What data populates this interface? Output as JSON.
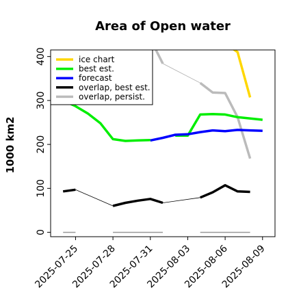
{
  "chart_data": {
    "type": "line",
    "title": "Area of Open water",
    "xlabel": "",
    "ylabel": "1000 km2",
    "xlim": [
      "2025-07-23",
      "2025-08-10"
    ],
    "ylim": [
      -10,
      415
    ],
    "yticks": [
      0,
      100,
      200,
      300,
      400
    ],
    "xticks": [
      {
        "date": "2025-07-25",
        "label": "2025-07-25",
        "color": "#000000"
      },
      {
        "date": "2025-07-28",
        "label": "2025-07-28",
        "color": "#000000"
      },
      {
        "date": "2025-07-31",
        "label": "2025-07-31",
        "color": "#228B22"
      },
      {
        "date": "2025-08-03",
        "label": "2025-08-03",
        "color": "#000000"
      },
      {
        "date": "2025-08-06",
        "label": "2025-08-06",
        "color": "#000000"
      },
      {
        "date": "2025-08-09",
        "label": "2025-08-09",
        "color": "#000000"
      }
    ],
    "legend": {
      "placement": "top-left"
    },
    "series": [
      {
        "name": "ice chart",
        "color": "#FFD700",
        "segments": [
          [
            [
              "2025-08-06",
              430
            ],
            [
              "2025-08-07",
              410
            ],
            [
              "2025-08-08",
              307
            ]
          ]
        ]
      },
      {
        "name": "best est.",
        "color": "#00EE00",
        "segments": [
          [
            [
              "2025-07-24",
              300
            ],
            [
              "2025-07-25",
              287
            ],
            [
              "2025-07-26",
              270
            ],
            [
              "2025-07-27",
              248
            ],
            [
              "2025-07-28",
              212
            ],
            [
              "2025-07-29",
              208
            ],
            [
              "2025-07-30",
              209
            ],
            [
              "2025-07-31",
              210
            ]
          ],
          [
            [
              "2025-08-02",
              220
            ],
            [
              "2025-08-03",
              220
            ],
            [
              "2025-08-04",
              268
            ],
            [
              "2025-08-05",
              269
            ],
            [
              "2025-08-06",
              268
            ],
            [
              "2025-08-07",
              262
            ],
            [
              "2025-08-09",
              256
            ]
          ]
        ]
      },
      {
        "name": "forecast",
        "color": "#0000FF",
        "segments": [
          [
            [
              "2025-07-31",
              209
            ],
            [
              "2025-08-01",
              215
            ],
            [
              "2025-08-02",
              222
            ],
            [
              "2025-08-03",
              223
            ],
            [
              "2025-08-04",
              228
            ],
            [
              "2025-08-05",
              232
            ],
            [
              "2025-08-06",
              230
            ],
            [
              "2025-08-07",
              233
            ],
            [
              "2025-08-08",
              232
            ],
            [
              "2025-08-09",
              231
            ]
          ]
        ]
      },
      {
        "name": "overlap, best est.",
        "color": "#000000",
        "segments": [
          [
            [
              "2025-07-24",
              93
            ],
            [
              "2025-07-25",
              97
            ]
          ],
          [
            [
              "2025-07-28",
              60
            ],
            [
              "2025-07-29",
              67
            ],
            [
              "2025-07-30",
              72
            ],
            [
              "2025-07-31",
              76
            ],
            [
              "2025-08-01",
              67
            ]
          ],
          [
            [
              "2025-08-04",
              79
            ],
            [
              "2025-08-05",
              91
            ],
            [
              "2025-08-06",
              107
            ],
            [
              "2025-08-07",
              93
            ],
            [
              "2025-08-08",
              92
            ]
          ]
        ],
        "connector": [
          [
            "2025-07-25",
            97
          ],
          [
            "2025-07-28",
            60
          ],
          [
            "2025-08-01",
            67
          ],
          [
            "2025-08-04",
            79
          ]
        ]
      },
      {
        "name": "overlap, persist.",
        "color": "#BBBBBB",
        "segments": [
          [
            [
              "2025-07-31",
              440
            ],
            [
              "2025-08-01",
              384
            ]
          ],
          [
            [
              "2025-08-04",
              340
            ],
            [
              "2025-08-05",
              318
            ],
            [
              "2025-08-06",
              317
            ],
            [
              "2025-08-07",
              262
            ],
            [
              "2025-08-08",
              168
            ]
          ]
        ],
        "connector": [
          [
            "2025-08-01",
            384
          ],
          [
            "2025-08-04",
            340
          ]
        ]
      }
    ],
    "baseline_segments": [
      [
        [
          "2025-07-24",
          0
        ],
        [
          "2025-07-25",
          0
        ]
      ],
      [
        [
          "2025-07-28",
          0
        ],
        [
          "2025-08-01",
          0
        ]
      ],
      [
        [
          "2025-08-04",
          0
        ],
        [
          "2025-08-08",
          0
        ]
      ]
    ]
  }
}
